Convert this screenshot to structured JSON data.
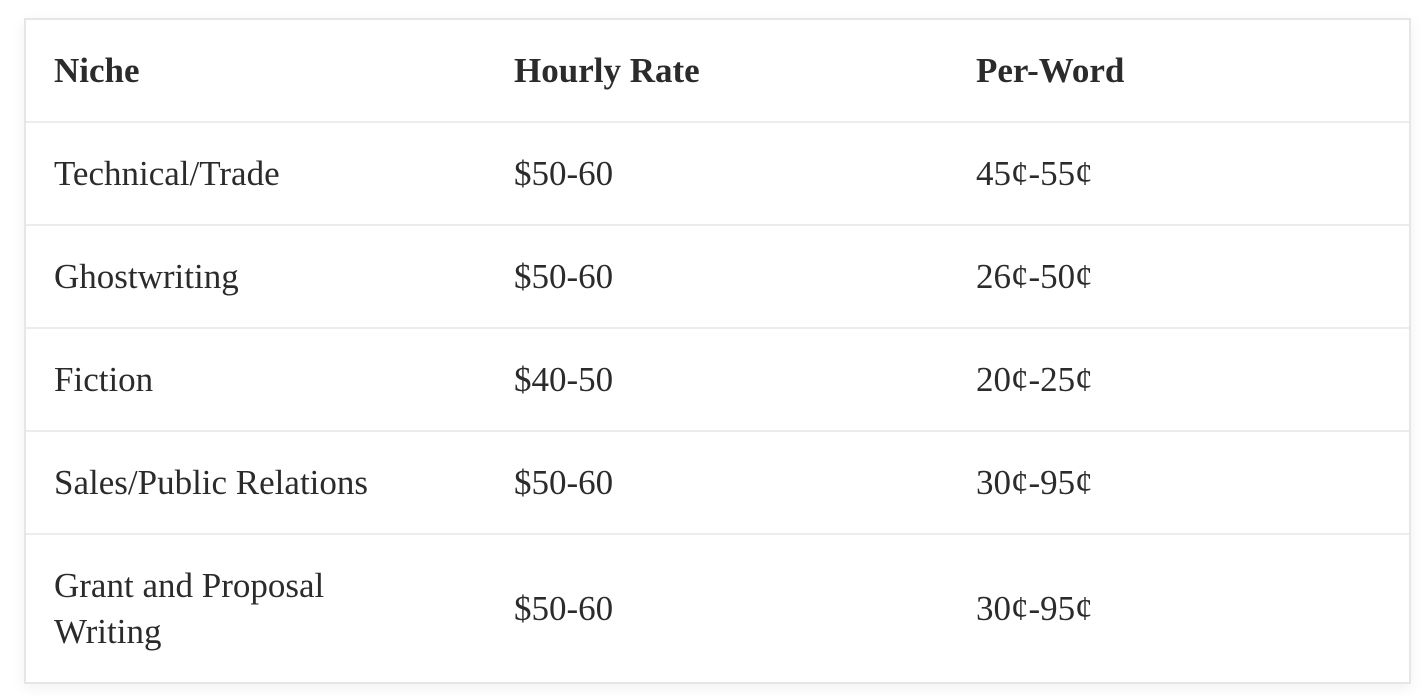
{
  "table": {
    "headers": [
      "Niche",
      "Hourly Rate",
      "Per-Word"
    ],
    "rows": [
      [
        "Technical/Trade",
        "$50-60",
        "45¢-55¢"
      ],
      [
        "Ghostwriting",
        "$50-60",
        "26¢-50¢"
      ],
      [
        "Fiction",
        "$40-50",
        "20¢-25¢"
      ],
      [
        "Sales/Public Relations",
        "$50-60",
        "30¢-95¢"
      ],
      [
        "Grant and Proposal Writing",
        "$50-60",
        "30¢-95¢"
      ]
    ]
  }
}
